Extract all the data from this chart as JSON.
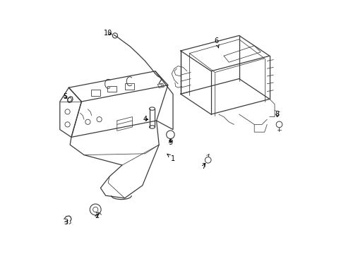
{
  "background_color": "#ffffff",
  "line_color": "#3a3a3a",
  "label_color": "#000000",
  "fig_width": 4.9,
  "fig_height": 3.6,
  "dpi": 100,
  "callouts": {
    "1": {
      "lpos": [
        0.5,
        0.375
      ],
      "aend": [
        0.47,
        0.4
      ]
    },
    "2": {
      "lpos": [
        0.2,
        0.15
      ],
      "aend": [
        0.205,
        0.168
      ]
    },
    "3": {
      "lpos": [
        0.08,
        0.125
      ],
      "aend": [
        0.092,
        0.14
      ]
    },
    "4": {
      "lpos": [
        0.39,
        0.53
      ],
      "aend": [
        0.405,
        0.53
      ]
    },
    "5": {
      "lpos": [
        0.075,
        0.62
      ],
      "aend": [
        0.09,
        0.608
      ]
    },
    "6": {
      "lpos": [
        0.67,
        0.84
      ],
      "aend": [
        0.68,
        0.81
      ]
    },
    "7": {
      "lpos": [
        0.62,
        0.345
      ],
      "aend": [
        0.63,
        0.365
      ]
    },
    "8": {
      "lpos": [
        0.91,
        0.55
      ],
      "aend": [
        0.91,
        0.53
      ]
    },
    "9": {
      "lpos": [
        0.49,
        0.44
      ],
      "aend": [
        0.485,
        0.46
      ]
    },
    "10": {
      "lpos": [
        0.245,
        0.87
      ],
      "aend": [
        0.268,
        0.862
      ]
    }
  }
}
